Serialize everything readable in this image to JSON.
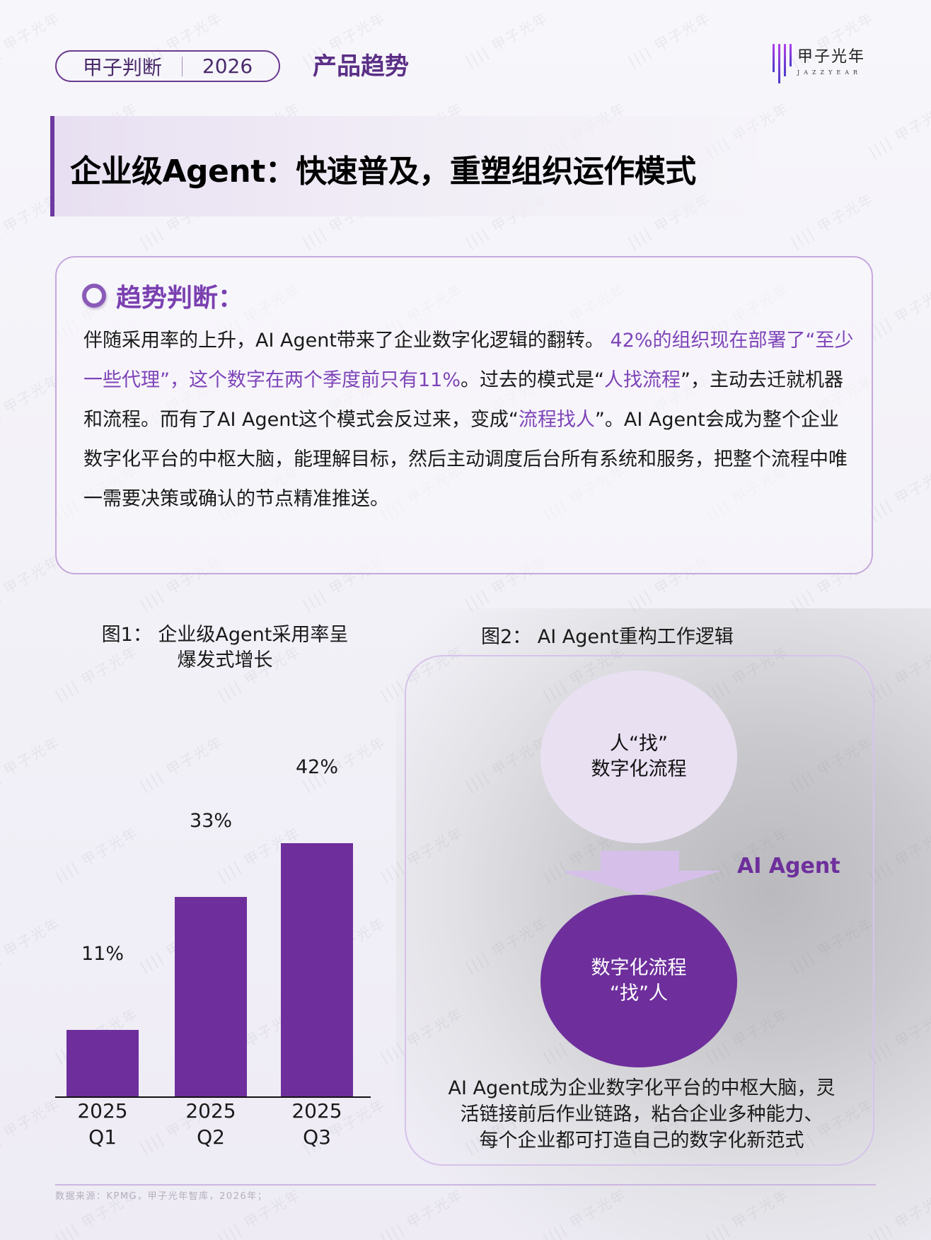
{
  "header": {
    "tag_left": "甲子判断",
    "tag_right": "2026",
    "section_title": "产品趋势",
    "logo": {
      "cn": "甲子光年",
      "en": "JAZZYEAR",
      "icon": "logo-bars-icon"
    }
  },
  "headline": "企业级Agent：快速普及，重塑组织运作模式",
  "trend": {
    "label": "趋势判断：",
    "icon": "ring-bullet-icon",
    "segments": [
      {
        "text": "伴随采用率的上升，AI Agent带来了企业数字化逻辑的翻转。 ",
        "highlight": false
      },
      {
        "text": "42%的组织现在部署了“至少一些代理”，这个数字在两个季度前只有11%",
        "highlight": true
      },
      {
        "text": "。过去的模式是“",
        "highlight": false
      },
      {
        "text": "人找流程",
        "highlight": true
      },
      {
        "text": "”，主动去迁就机器和流程。而有了AI Agent这个模式会反过来，变成“",
        "highlight": false
      },
      {
        "text": "流程找人",
        "highlight": true
      },
      {
        "text": "”。AI Agent会成为整个企业数字化平台的中枢大脑，能理解目标，然后主动调度后台所有系统和服务，把整个流程中唯一需要决策或确认的节点精准推送。",
        "highlight": false
      }
    ]
  },
  "fig1": {
    "title_line1": "图1： 企业级Agent采用率呈",
    "title_line2": "爆发式增长"
  },
  "chart_data": {
    "type": "bar",
    "title": "图1： 企业级Agent采用率呈爆发式增长",
    "categories": [
      "2025 Q1",
      "2025 Q2",
      "2025 Q3"
    ],
    "category_lines": [
      [
        "2025",
        "Q1"
      ],
      [
        "2025",
        "Q2"
      ],
      [
        "2025",
        "Q3"
      ]
    ],
    "values": [
      11,
      33,
      42
    ],
    "value_labels": [
      "11%",
      "33%",
      "42%"
    ],
    "xlabel": "",
    "ylabel": "",
    "ylim": [
      0,
      42
    ],
    "grid": false,
    "bar_color": "#6E2F9C"
  },
  "fig2": {
    "title": "图2： AI Agent重构工作逻辑",
    "top_circle": {
      "line1": "人“找”",
      "line2": "数字化流程"
    },
    "arrow_label": "AI Agent",
    "bottom_circle": {
      "line1": "数字化流程",
      "line2": "“找”人"
    },
    "description": [
      "AI Agent成为企业数字化平台的中枢大脑，灵",
      "活链接前后作业链路，粘合企业多种能力、",
      "每个企业都可打造自己的数字化新范式"
    ]
  },
  "footer": {
    "source": "数据来源：KPMG，甲子光年智库，2026年；"
  },
  "colors": {
    "accent": "#6E2F9C",
    "highlight_text": "#7E44B8",
    "light_purple": "#E9E0F2",
    "arrow": "#D6C0EA",
    "border": "#C6A8DC"
  }
}
